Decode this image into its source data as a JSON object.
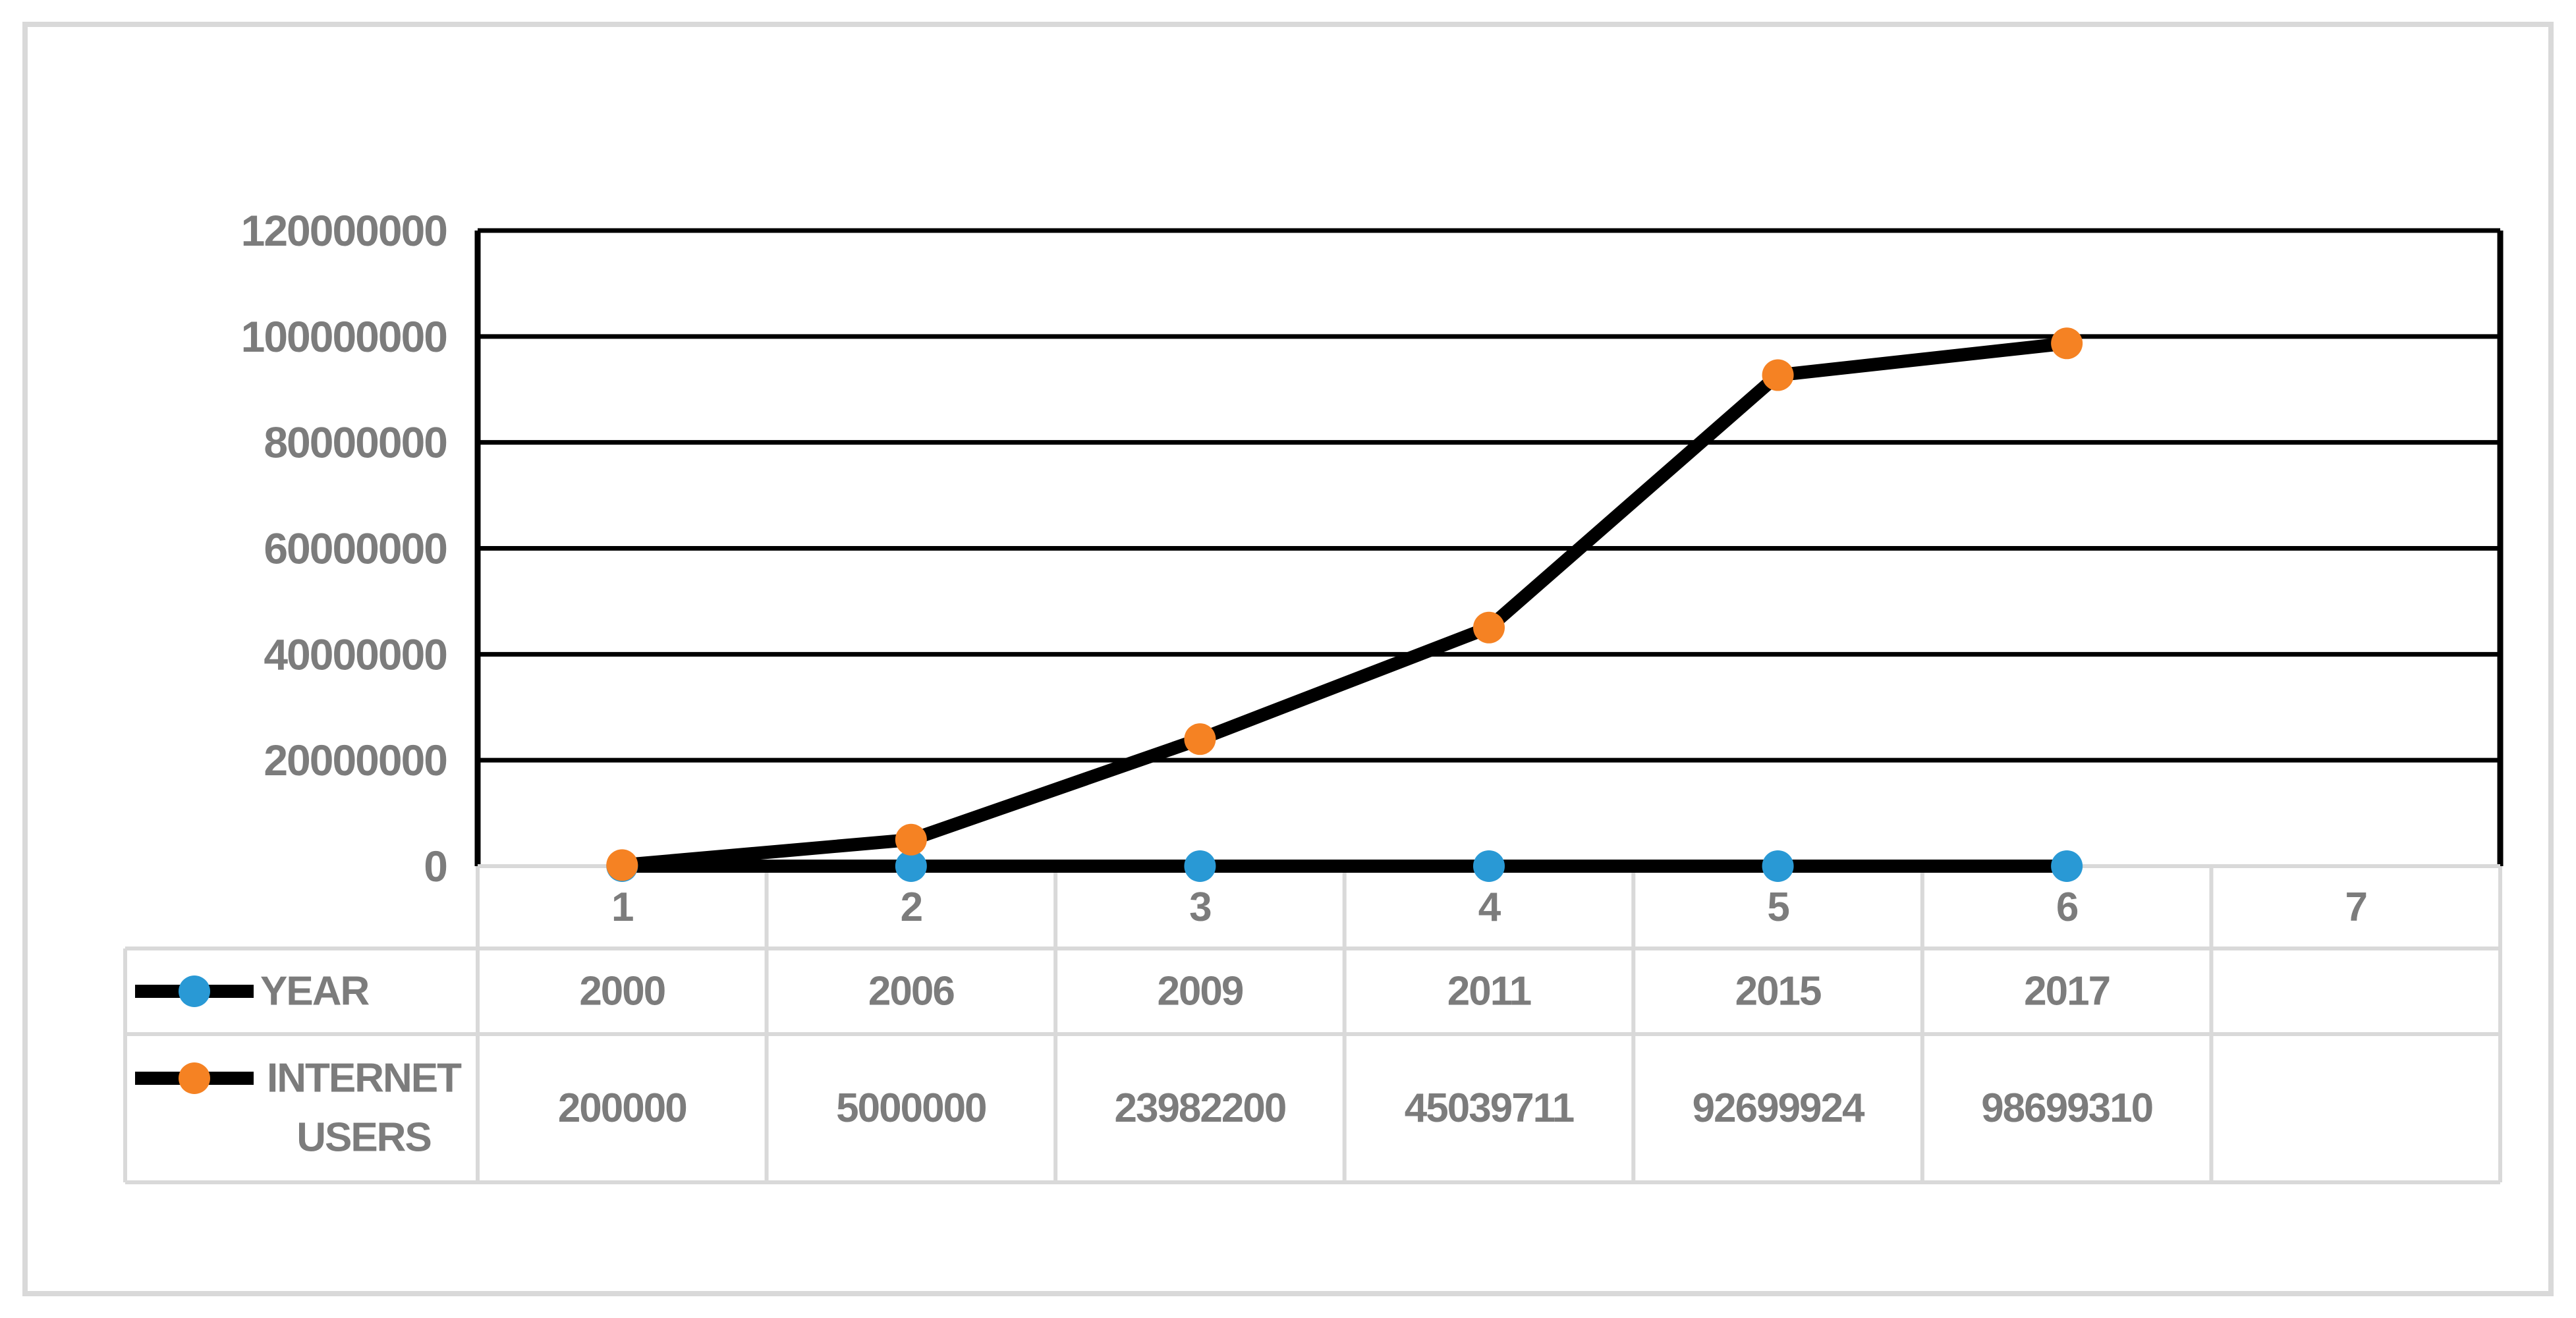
{
  "chart_data": {
    "type": "line",
    "title": "",
    "xlabel": "",
    "ylabel": "",
    "categories": [
      "1",
      "2",
      "3",
      "4",
      "5",
      "6",
      "7"
    ],
    "series": [
      {
        "name": "YEAR",
        "legend_lines": [
          "YEAR"
        ],
        "values": [
          2000,
          2006,
          2009,
          2011,
          2015,
          2017
        ],
        "line_color": "#000000",
        "marker_color": "#2999D5"
      },
      {
        "name": "INTERNET USERS",
        "legend_lines": [
          "INTERNET",
          "USERS"
        ],
        "values": [
          200000,
          5000000,
          23982200,
          45039711,
          92699924,
          98699310
        ],
        "line_color": "#000000",
        "marker_color": "#F58223"
      }
    ],
    "ylim": [
      0,
      120000000
    ],
    "y_ticks": [
      0,
      20000000,
      40000000,
      60000000,
      80000000,
      100000000,
      120000000
    ],
    "y_tick_labels": [
      "0",
      "20000000",
      "40000000",
      "60000000",
      "80000000",
      "100000000",
      "120000000"
    ],
    "grid": "horizontal-only",
    "legend_position": "table-left-column"
  },
  "table": {
    "category_row": [
      "1",
      "2",
      "3",
      "4",
      "5",
      "6",
      "7"
    ],
    "row_headers": [
      "YEAR",
      "INTERNET USERS"
    ],
    "rows": [
      [
        "2000",
        "2006",
        "2009",
        "2011",
        "2015",
        "2017",
        ""
      ],
      [
        "200000",
        "5000000",
        "23982200",
        "45039711",
        "92699924",
        "98699310",
        ""
      ]
    ]
  },
  "colors": {
    "background": "#FFFFFF",
    "outer_frame": "#D9D9D9",
    "table_border": "#D9D9D9",
    "gridline": "#000000",
    "series_line": "#000000",
    "text_gray": "#7C7C7C",
    "marker_blue": "#2999D5",
    "marker_orange": "#F58223"
  }
}
